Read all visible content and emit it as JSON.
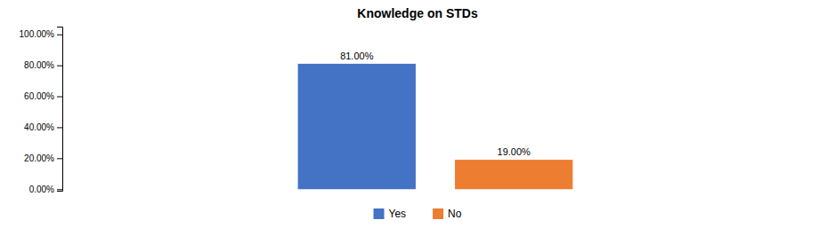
{
  "chart_data": {
    "type": "bar",
    "title": "Knowledge on STDs",
    "categories": [
      "Yes",
      "No"
    ],
    "values": [
      0.81,
      0.19
    ],
    "value_labels": [
      "81.00%",
      "19.00%"
    ],
    "data_labels": true,
    "colors": [
      "#4472C4",
      "#ED7D31"
    ],
    "ylim": [
      -0.01,
      1.05
    ],
    "yticks": [
      {
        "value": 0.0,
        "label": "0.00%"
      },
      {
        "value": 0.2,
        "label": "20.00%"
      },
      {
        "value": 0.4,
        "label": "40.00%"
      },
      {
        "value": 0.6,
        "label": "60.00%"
      },
      {
        "value": 0.8,
        "label": "80.00%"
      },
      {
        "value": 1.0,
        "label": "100.00%"
      }
    ],
    "grid": false,
    "legend": "bottom",
    "tick_labels": "y"
  }
}
